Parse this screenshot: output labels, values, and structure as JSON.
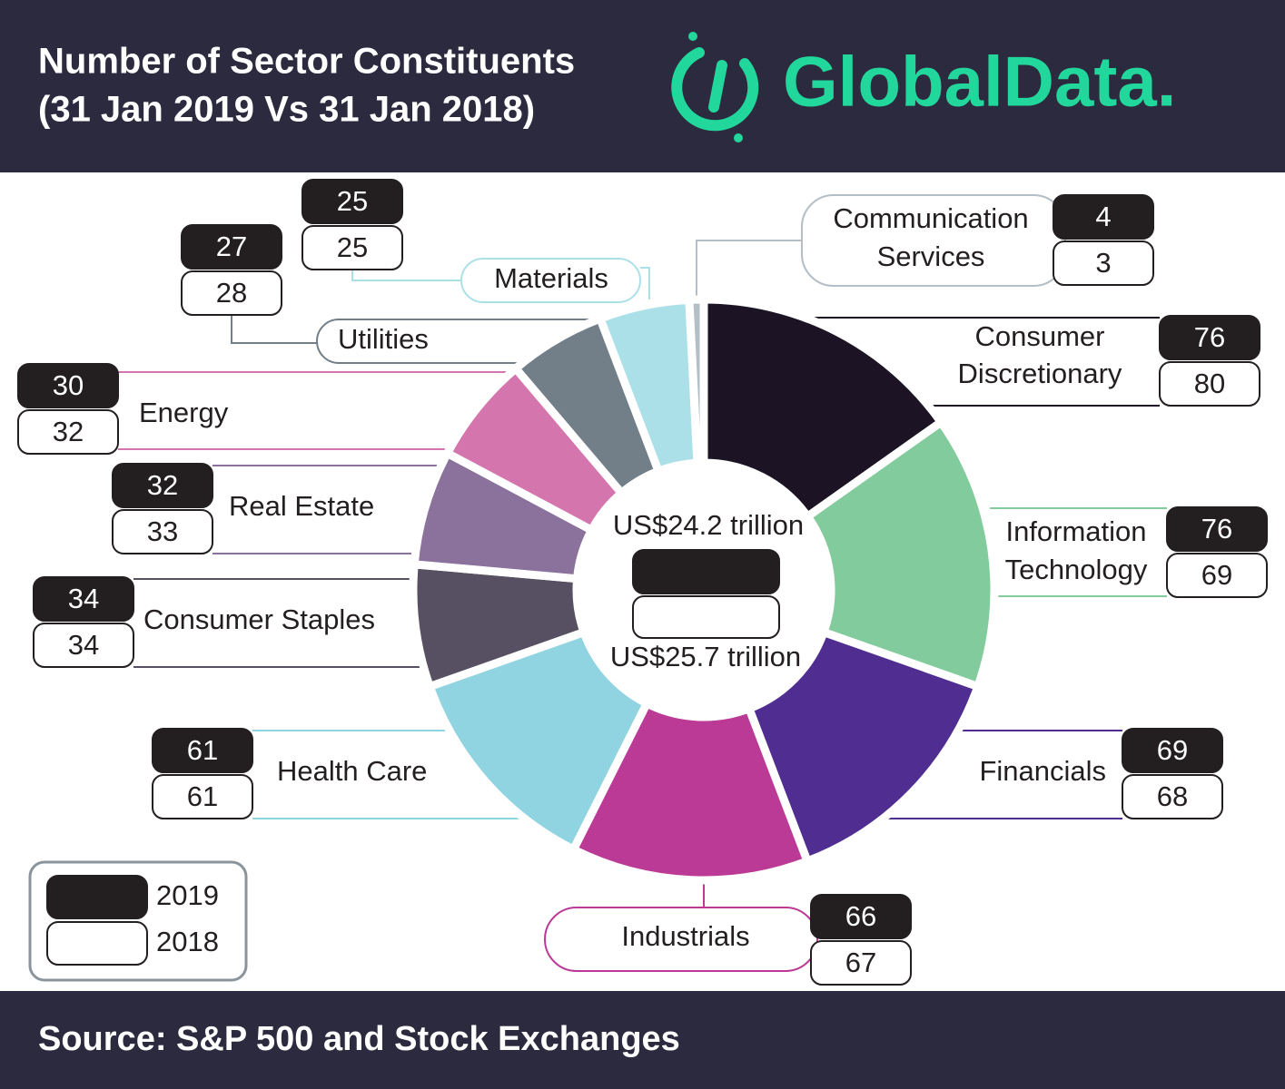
{
  "chart_data": {
    "type": "donut",
    "title": "Number of Sector Constituents",
    "subtitle": "(31 Jan 2019 Vs  31 Jan 2018)",
    "logo": "GlobalData.",
    "source": "Source: S&P 500 and Stock Exchanges",
    "categories": [
      "Consumer Discretionary",
      "Information Technology",
      "Financials",
      "Industrials",
      "Health Care",
      "Consumer Staples",
      "Real Estate",
      "Energy",
      "Utilities",
      "Materials",
      "Communication Services"
    ],
    "colors": [
      "#1c1424",
      "#82cb9c",
      "#4f2d91",
      "#bb3a95",
      "#8fd4e0",
      "#574f62",
      "#8a729c",
      "#d475ae",
      "#727f88",
      "#ace0e8",
      "#b4bec6"
    ],
    "series": [
      {
        "name": "2019",
        "color": "#231f20",
        "values": [
          76,
          76,
          69,
          66,
          61,
          34,
          32,
          30,
          27,
          25,
          4
        ]
      },
      {
        "name": "2018",
        "color": "#ffffff",
        "values": [
          80,
          69,
          68,
          67,
          61,
          34,
          33,
          32,
          28,
          25,
          3
        ]
      }
    ],
    "center_labels": [
      "US$24.2 trillion",
      "US$25.7 trillion"
    ]
  }
}
